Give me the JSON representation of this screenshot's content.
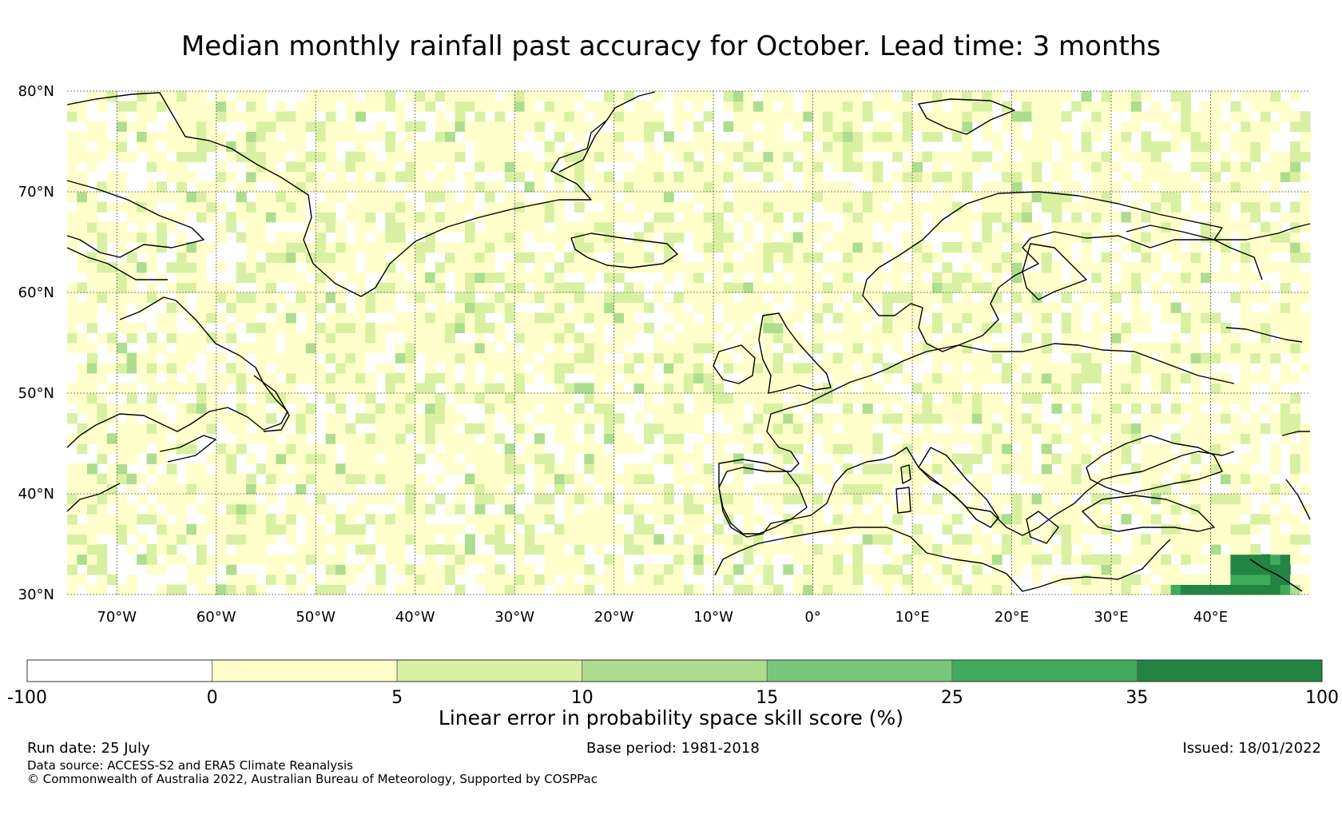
{
  "title": "Median monthly rainfall past accuracy for October. Lead time: 3 months",
  "map": {
    "lat_range": [
      30,
      80
    ],
    "lon_range": [
      -75,
      50
    ],
    "lat_ticks": [
      {
        "value": 80,
        "label": "80°N"
      },
      {
        "value": 70,
        "label": "70°N"
      },
      {
        "value": 60,
        "label": "60°N"
      },
      {
        "value": 50,
        "label": "50°N"
      },
      {
        "value": 40,
        "label": "40°N"
      },
      {
        "value": 30,
        "label": "30°N"
      }
    ],
    "lon_ticks": [
      {
        "value": -70,
        "label": "70°W"
      },
      {
        "value": -60,
        "label": "60°W"
      },
      {
        "value": -50,
        "label": "50°W"
      },
      {
        "value": -40,
        "label": "40°W"
      },
      {
        "value": -30,
        "label": "30°W"
      },
      {
        "value": -20,
        "label": "20°W"
      },
      {
        "value": -10,
        "label": "10°W"
      },
      {
        "value": 0,
        "label": "0°"
      },
      {
        "value": 10,
        "label": "10°E"
      },
      {
        "value": 20,
        "label": "20°E"
      },
      {
        "value": 30,
        "label": "30°E"
      },
      {
        "value": 40,
        "label": "40°E"
      }
    ],
    "high_skill_region": {
      "lon": [
        36,
        48
      ],
      "lat": [
        30,
        33.5
      ],
      "level": "35 to 100"
    }
  },
  "colorbar": {
    "label": "Linear error in probability space skill score (%)",
    "bounds": [
      "-100",
      "0",
      "5",
      "10",
      "15",
      "25",
      "35",
      "100"
    ],
    "colors": [
      "#ffffff",
      "#ffffcc",
      "#d9f0a3",
      "#addd8e",
      "#78c679",
      "#41ab5d",
      "#238443"
    ]
  },
  "footer": {
    "run_date": "Run date: 25 July",
    "base_period": "Base period: 1981-2018",
    "issued": "Issued: 18/01/2022",
    "data_source": "Data source: ACCESS-S2 and ERA5 Climate Reanalysis",
    "copyright": "© Commonwealth of Australia 2022, Australian Bureau of Meteorology, Supported by COSPPac"
  }
}
